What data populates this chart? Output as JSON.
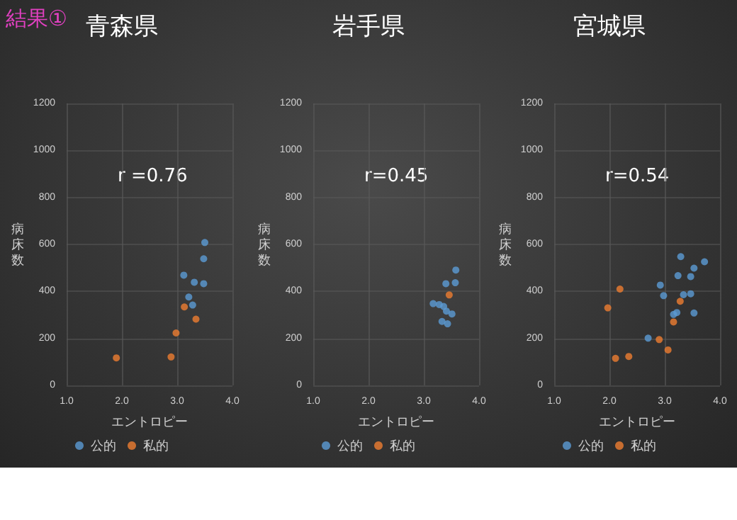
{
  "chart_data": [
    {
      "type": "scatter",
      "title": "青森県",
      "xlabel": "エントロピー",
      "ylabel": "病床数",
      "annotations": [
        "結果①",
        "r =0.76"
      ],
      "xlim": [
        1.0,
        4.0
      ],
      "xticks": [
        {
          "value": 1,
          "label": "1.0"
        },
        {
          "value": 2,
          "label": "2.0"
        },
        {
          "value": 3,
          "label": "3.0"
        },
        {
          "value": 4,
          "label": "4.0"
        }
      ],
      "ylim": [
        0,
        1200
      ],
      "yticks": [
        0,
        200,
        400,
        600,
        800,
        1000,
        1200
      ],
      "grid": true,
      "legend": "bottom",
      "marker": "circle",
      "series": [
        {
          "name": "公的",
          "color": "#5b9bd5",
          "x": [
            3.5,
            3.48,
            3.12,
            3.31,
            3.48,
            3.21,
            3.28
          ],
          "values": [
            608,
            539,
            469,
            439,
            433,
            376,
            342
          ]
        },
        {
          "name": "私的",
          "color": "#ed7d31",
          "x": [
            3.13,
            3.34,
            2.98,
            1.9,
            2.89
          ],
          "values": [
            334,
            282,
            223,
            117,
            121
          ]
        }
      ]
    },
    {
      "type": "scatter",
      "title": "岩手県",
      "xlabel": "エントロピー",
      "ylabel": "病床数",
      "annotations": [
        "r=0.45"
      ],
      "xlim": [
        1.0,
        4.0
      ],
      "xticks": [
        {
          "value": 1,
          "label": "1.0"
        },
        {
          "value": 2,
          "label": "2.0"
        },
        {
          "value": 3,
          "label": "3.0"
        },
        {
          "value": 4,
          "label": "4.0"
        }
      ],
      "ylim": [
        0,
        1200
      ],
      "yticks": [
        0,
        200,
        400,
        600,
        800,
        1000,
        1200
      ],
      "grid": true,
      "legend": "bottom",
      "marker": "circle",
      "series": [
        {
          "name": "公的",
          "color": "#5b9bd5",
          "x": [
            3.58,
            3.57,
            3.4,
            3.17,
            3.28,
            3.36,
            3.41,
            3.51,
            3.33,
            3.43
          ],
          "values": [
            491,
            437,
            433,
            348,
            344,
            336,
            316,
            304,
            272,
            262
          ]
        },
        {
          "name": "私的",
          "color": "#ed7d31",
          "x": [
            3.46
          ],
          "values": [
            385
          ]
        }
      ]
    },
    {
      "type": "scatter",
      "title": "宮城県",
      "xlabel": "エントロピー",
      "ylabel": "病床数",
      "annotations": [
        "r=0.54"
      ],
      "xlim": [
        1.0,
        4.0
      ],
      "xticks": [
        {
          "value": 1,
          "label": "1.0"
        },
        {
          "value": 2,
          "label": "2.0"
        },
        {
          "value": 3,
          "label": "3.0"
        },
        {
          "value": 4,
          "label": "4.0"
        }
      ],
      "ylim": [
        0,
        1200
      ],
      "yticks": [
        0,
        200,
        400,
        600,
        800,
        1000,
        1200
      ],
      "grid": true,
      "legend": "bottom",
      "marker": "circle",
      "series": [
        {
          "name": "公的",
          "color": "#5b9bd5",
          "x": [
            3.29,
            3.72,
            3.53,
            3.24,
            3.47,
            2.92,
            2.98,
            3.34,
            3.47,
            3.16,
            3.22,
            3.53,
            2.7
          ],
          "values": [
            548,
            526,
            499,
            467,
            463,
            427,
            382,
            386,
            390,
            302,
            310,
            308,
            201
          ]
        },
        {
          "name": "私的",
          "color": "#ed7d31",
          "x": [
            2.19,
            1.97,
            3.28,
            3.16,
            2.9,
            3.06,
            2.35,
            2.11
          ],
          "values": [
            410,
            330,
            358,
            270,
            195,
            151,
            123,
            115
          ]
        }
      ]
    }
  ]
}
